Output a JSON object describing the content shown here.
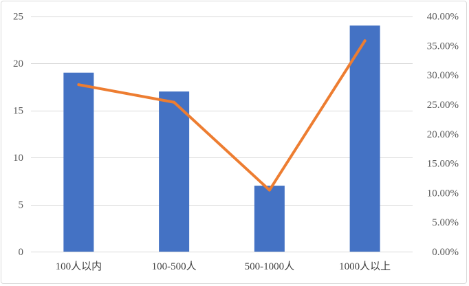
{
  "chart_data": {
    "type": "bar",
    "categories": [
      "100人以内",
      "100-500人",
      "500-1000人",
      "1000人以上"
    ],
    "series": [
      {
        "type": "bar",
        "axis": "left",
        "color": "#4472c4",
        "values": [
          19,
          17,
          7,
          24
        ]
      },
      {
        "type": "line",
        "axis": "right",
        "color": "#ed7d31",
        "values": [
          28.36,
          25.37,
          10.45,
          35.82
        ]
      }
    ],
    "y_left": {
      "lim": [
        0,
        25
      ],
      "ticks": [
        "0",
        "5",
        "10",
        "15",
        "20",
        "25"
      ]
    },
    "y_right": {
      "lim": [
        0,
        40
      ],
      "ticks": [
        "0.00%",
        "5.00%",
        "10.00%",
        "15.00%",
        "20.00%",
        "25.00%",
        "30.00%",
        "35.00%",
        "40.00%"
      ]
    },
    "grid": true,
    "legend": "none"
  }
}
